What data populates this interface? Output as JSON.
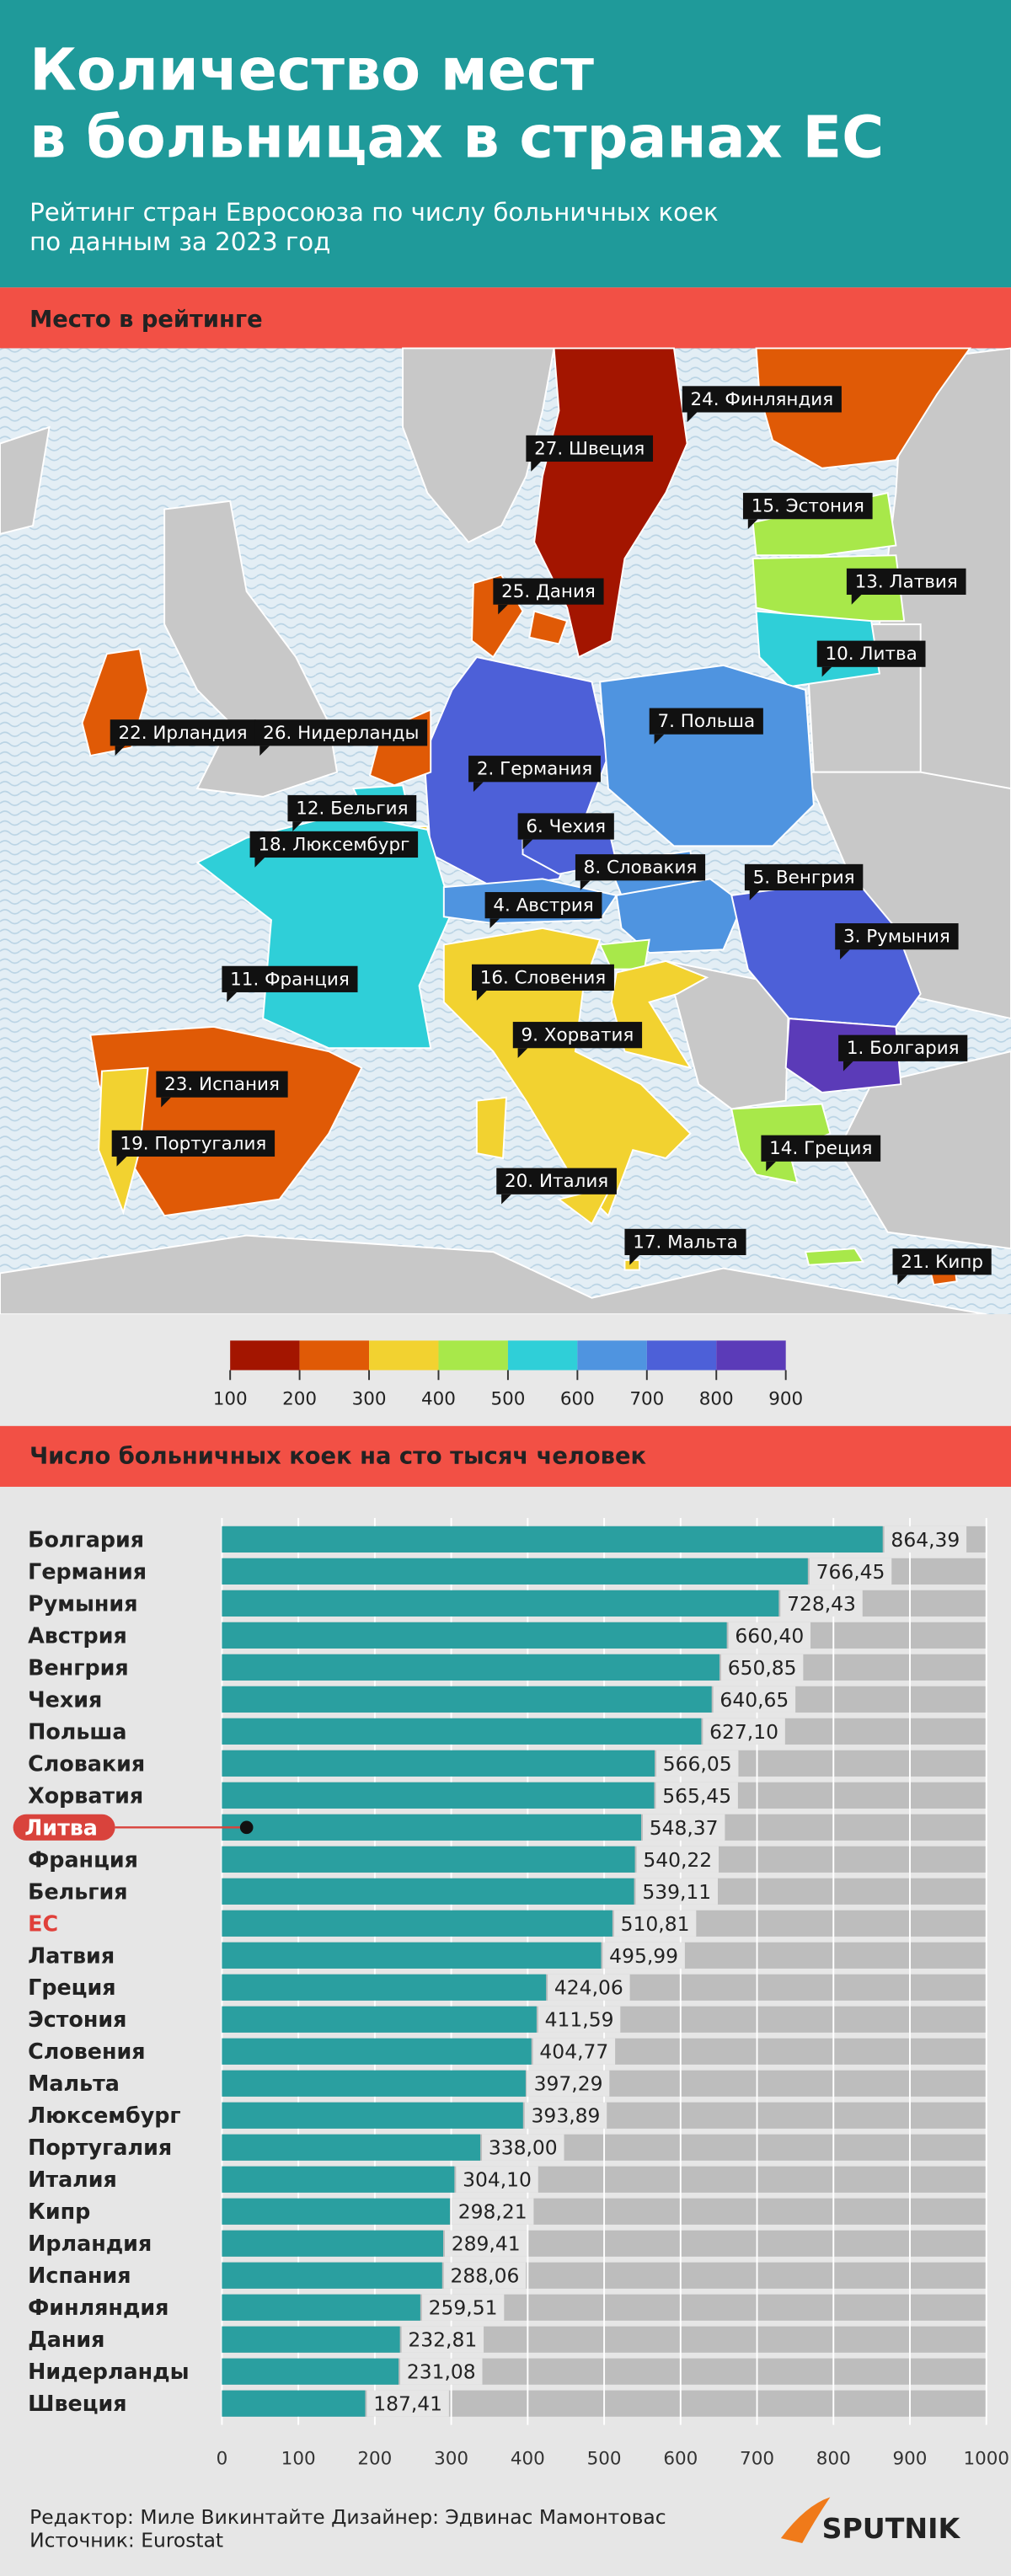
{
  "header": {
    "title_lines": [
      "Количество мест",
      "в больницах в странах ЕС"
    ],
    "subtitle_lines": [
      "Рейтинг стран Евросоюза по числу больничных коек",
      "по данным за 2023 год"
    ]
  },
  "map": {
    "section_title": "Место в рейтинге",
    "labels": [
      "24. Финляндия",
      "27. Швеция",
      "15. Эстония",
      "13. Латвия",
      "25. Дания",
      "10. Литва",
      "22. Ирландия",
      "26. Нидерланды",
      "7. Польша",
      "2. Германия",
      "12. Бельгия",
      "6. Чехия",
      "18. Люксембург",
      "8. Словакия",
      "5. Венгрия",
      "4. Австрия",
      "3. Румыния",
      "16. Словения",
      "11. Франция",
      "9. Хорватия",
      "1. Болгария",
      "23. Испания",
      "19. Португалия",
      "14. Греция",
      "20. Италия",
      "17. Мальта",
      "21. Кипр"
    ]
  },
  "scale": {
    "ticks": [
      100,
      200,
      300,
      400,
      500,
      600,
      700,
      800,
      900
    ],
    "colors": [
      "#a31500",
      "#e05a06",
      "#f2d230",
      "#a8e84a",
      "#2fcfd8",
      "#4f94e0",
      "#4d60d8",
      "#5b3bb8"
    ]
  },
  "chart_data": {
    "type": "bar",
    "orientation": "horizontal",
    "title": "Число больничных коек на сто тысяч человек",
    "categories": [
      "Болгария",
      "Германия",
      "Румыния",
      "Австрия",
      "Венгрия",
      "Чехия",
      "Польша",
      "Словакия",
      "Хорватия",
      "Литва",
      "Франция",
      "Бельгия",
      "ЕС",
      "Латвия",
      "Греция",
      "Эстония",
      "Словения",
      "Мальта",
      "Люксембург",
      "Португалия",
      "Италия",
      "Кипр",
      "Ирландия",
      "Испания",
      "Финляндия",
      "Дания",
      "Нидерланды",
      "Швеция"
    ],
    "values": [
      864.39,
      766.45,
      728.43,
      660.4,
      650.85,
      640.65,
      627.1,
      566.05,
      565.45,
      548.37,
      540.22,
      539.11,
      510.81,
      495.99,
      424.06,
      411.59,
      404.77,
      397.29,
      393.89,
      338.0,
      304.1,
      298.21,
      289.41,
      288.06,
      259.51,
      232.81,
      231.08,
      187.41
    ],
    "value_labels": [
      "864,39",
      "766,45",
      "728,43",
      "660,40",
      "650,85",
      "640,65",
      "627,10",
      "566,05",
      "565,45",
      "548,37",
      "540,22",
      "539,11",
      "510,81",
      "495,99",
      "424,06",
      "411,59",
      "404,77",
      "397,29",
      "393,89",
      "338,00",
      "304,10",
      "298,21",
      "289,41",
      "288,06",
      "259,51",
      "232,81",
      "231,08",
      "187,41"
    ],
    "color": "#2a9fa0",
    "highlight": 9,
    "accent": 12,
    "xlim": [
      0,
      1000
    ],
    "xticks": [
      0,
      100,
      200,
      300,
      400,
      500,
      600,
      700,
      800,
      900,
      1000
    ],
    "grid": true
  },
  "footer": {
    "credits": "Редактор: Миле Викинтайте  Дизайнер: Эдвинас Мамонтовас",
    "source": "Источник: Eurostat",
    "logo": "SPUTNIK"
  }
}
